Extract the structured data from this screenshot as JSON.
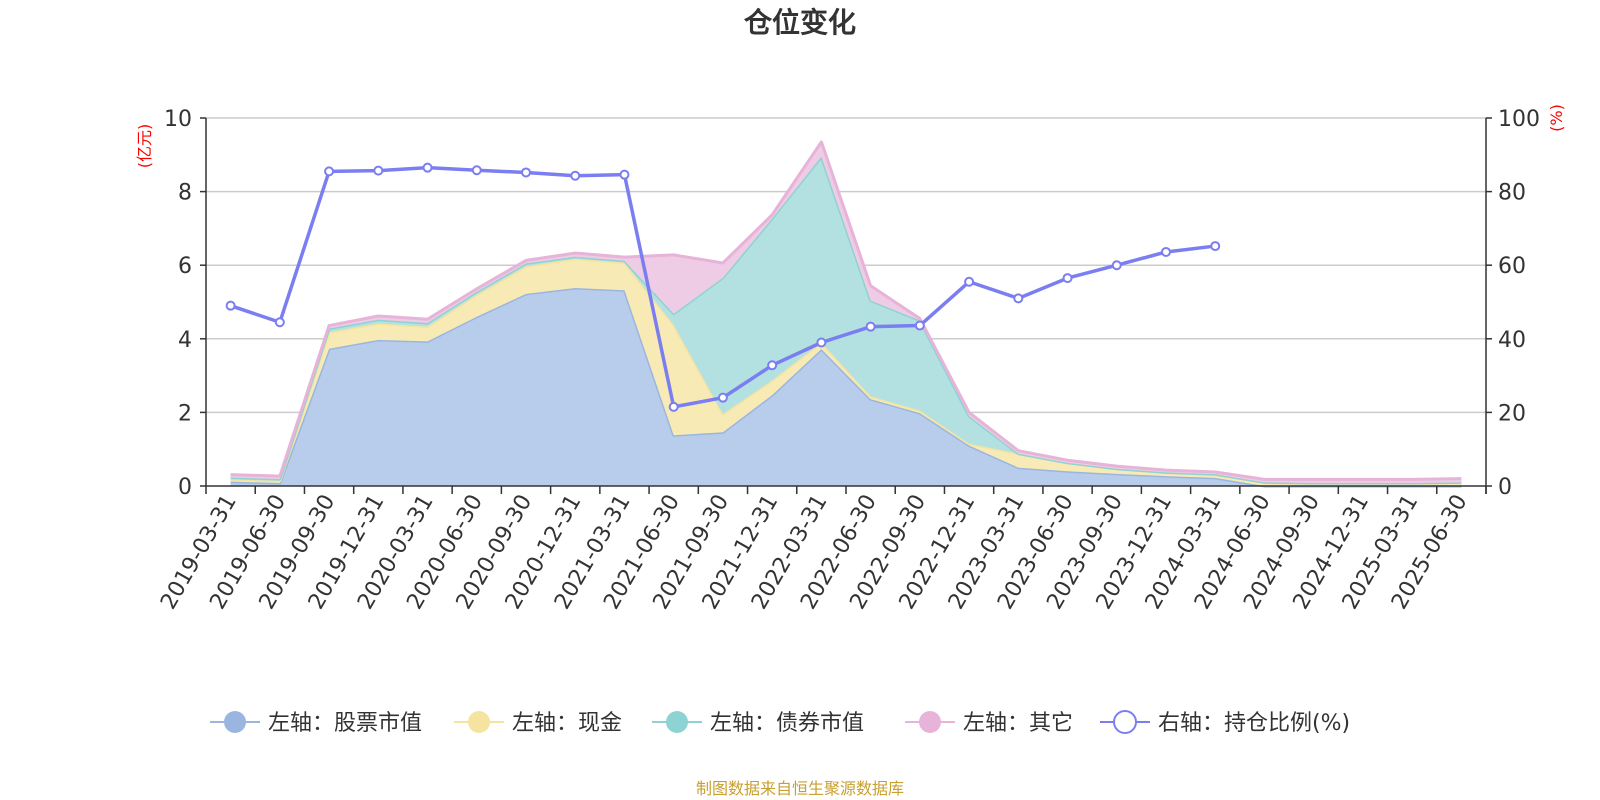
{
  "chart_data": {
    "type": "area",
    "title": "仓位变化",
    "left_unit": "(亿元)",
    "right_unit": "(%)",
    "source": "制图数据来自恒生聚源数据库",
    "categories": [
      "2019-03-31",
      "2019-06-30",
      "2019-09-30",
      "2019-12-31",
      "2020-03-31",
      "2020-06-30",
      "2020-09-30",
      "2020-12-31",
      "2021-03-31",
      "2021-06-30",
      "2021-09-30",
      "2021-12-31",
      "2022-03-31",
      "2022-06-30",
      "2022-09-30",
      "2022-12-31",
      "2023-03-31",
      "2023-06-30",
      "2023-09-30",
      "2023-12-31",
      "2024-03-31",
      "2024-06-30",
      "2024-09-30",
      "2024-12-31",
      "2025-03-31",
      "2025-06-30"
    ],
    "left_axis": {
      "min": 0,
      "max": 10,
      "ticks": [
        "0",
        "2",
        "4",
        "6",
        "8",
        "10"
      ]
    },
    "right_axis": {
      "min": 0,
      "max": 100,
      "ticks": [
        "0",
        "20",
        "40",
        "60",
        "80",
        "100"
      ]
    },
    "series": [
      {
        "name": "左轴：股票市值",
        "axis": "left",
        "stack": true,
        "color": "#9ab6e0",
        "fill": "#b8cdeb",
        "values": [
          0.12,
          0.08,
          3.73,
          3.97,
          3.93,
          4.6,
          5.22,
          5.38,
          5.32,
          1.38,
          1.46,
          2.47,
          3.72,
          2.36,
          1.98,
          1.1,
          0.5,
          0.4,
          0.33,
          0.27,
          0.22,
          0,
          0,
          0,
          0,
          0
        ]
      },
      {
        "name": "左轴：现金",
        "axis": "left",
        "stack": true,
        "color": "#f5e3a0",
        "fill": "#f8eab4",
        "values": [
          0.06,
          0.06,
          0.45,
          0.45,
          0.4,
          0.6,
          0.75,
          0.8,
          0.75,
          3.0,
          0.5,
          0.4,
          0.18,
          0.08,
          0.07,
          0.05,
          0.38,
          0.23,
          0.14,
          0.1,
          0.1,
          0.1,
          0.08,
          0.08,
          0.08,
          0.1
        ]
      },
      {
        "name": "左轴：债券市值",
        "axis": "left",
        "stack": true,
        "color": "#8ed3d3",
        "fill": "#b3e1e1",
        "values": [
          0.05,
          0.05,
          0.1,
          0.1,
          0.1,
          0.08,
          0.08,
          0.05,
          0.05,
          0.3,
          3.7,
          4.4,
          5.05,
          2.6,
          2.45,
          0.75,
          0,
          0,
          0,
          0,
          0,
          0,
          0,
          0,
          0,
          0
        ]
      },
      {
        "name": "左轴：其它",
        "axis": "left",
        "stack": true,
        "color": "#e7b3d8",
        "fill": "#efcce5",
        "values": [
          0.08,
          0.08,
          0.08,
          0.1,
          0.1,
          0.08,
          0.08,
          0.1,
          0.1,
          1.6,
          0.4,
          0.1,
          0.4,
          0.4,
          0.05,
          0.1,
          0.08,
          0.07,
          0.07,
          0.06,
          0.06,
          0.08,
          0.1,
          0.1,
          0.1,
          0.1
        ]
      },
      {
        "name": "右轴：持仓比例(%)",
        "axis": "right",
        "stack": false,
        "color": "#7b7ef0",
        "fill": "#ffffff",
        "values": [
          49,
          44.5,
          85.5,
          85.7,
          86.5,
          85.8,
          85.2,
          84.3,
          84.6,
          21.5,
          24,
          32.8,
          39,
          43.3,
          43.6,
          55.5,
          51,
          56.5,
          60,
          63.6,
          65.2,
          null,
          null,
          null,
          null,
          null
        ]
      }
    ]
  }
}
